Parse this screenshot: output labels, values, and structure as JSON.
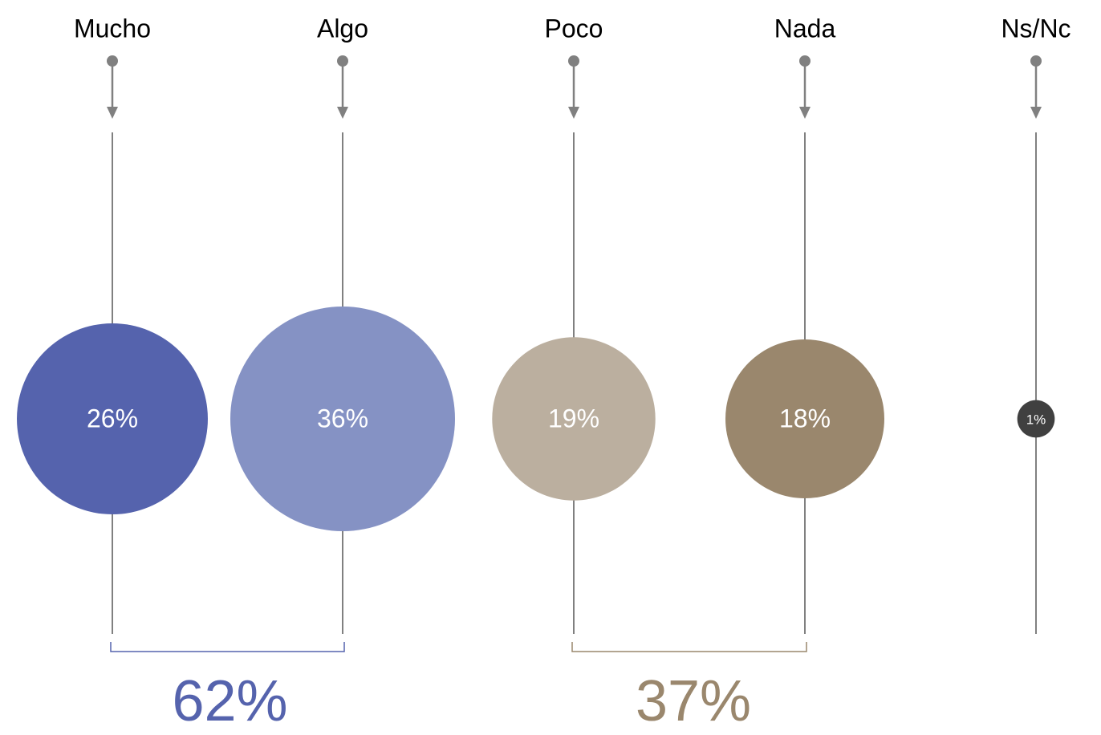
{
  "chart_data": {
    "type": "bubble",
    "categories": [
      "Mucho",
      "Algo",
      "Poco",
      "Nada",
      "Ns/Nc"
    ],
    "values": [
      26,
      36,
      19,
      18,
      1
    ],
    "value_labels": [
      "26%",
      "36%",
      "19%",
      "18%",
      "1%"
    ],
    "colors": [
      "#5563ad",
      "#8592c4",
      "#bbaf9f",
      "#9a876d",
      "#404040"
    ],
    "groups": [
      {
        "members": [
          "Mucho",
          "Algo"
        ],
        "total": 62,
        "label": "62%",
        "color": "#5563ad"
      },
      {
        "members": [
          "Poco",
          "Nada"
        ],
        "total": 37,
        "label": "37%",
        "color": "#9a876d"
      }
    ],
    "title": "",
    "xlabel": "",
    "ylabel": "",
    "grid": false,
    "legend": "none"
  },
  "colors": {
    "stem_line": "#808080",
    "category_text": "#000000",
    "bubble_text": "#ffffff"
  }
}
